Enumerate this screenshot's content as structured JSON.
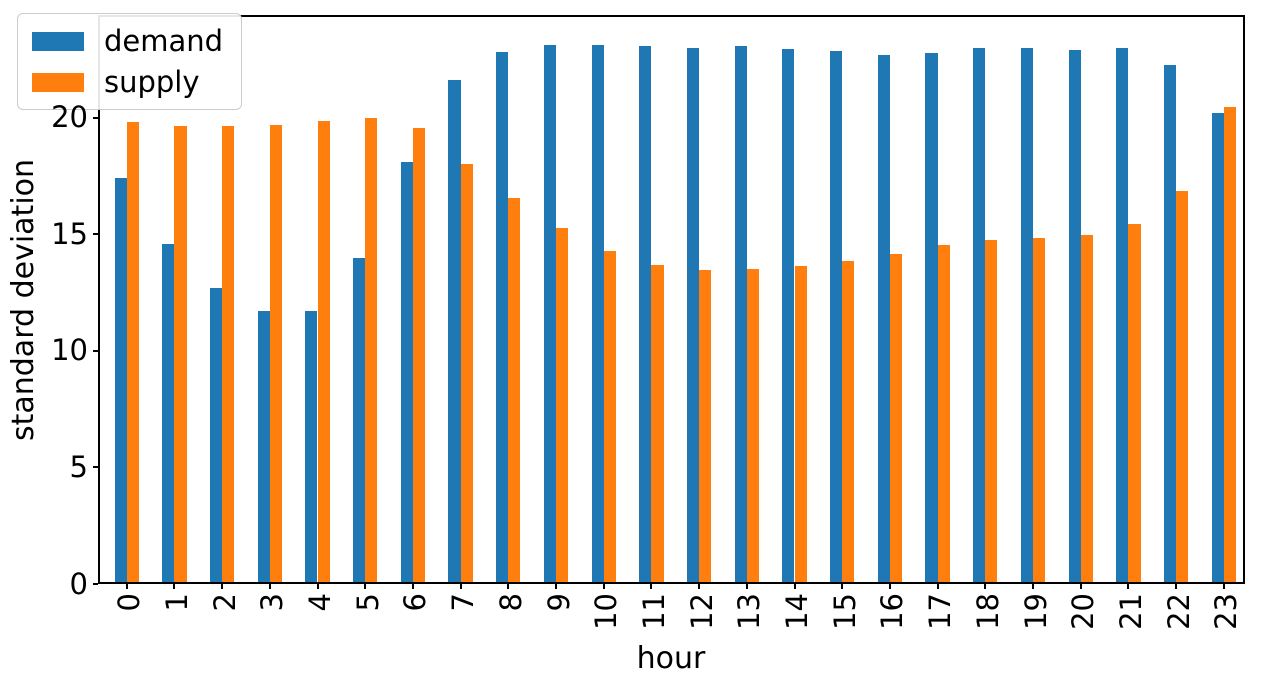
{
  "chart_data": {
    "type": "bar",
    "title": "",
    "xlabel": "hour",
    "ylabel": "standard deviation",
    "categories": [
      "0",
      "1",
      "2",
      "3",
      "4",
      "5",
      "6",
      "7",
      "8",
      "9",
      "10",
      "11",
      "12",
      "13",
      "14",
      "15",
      "16",
      "17",
      "18",
      "19",
      "20",
      "21",
      "22",
      "23"
    ],
    "series": [
      {
        "name": "demand",
        "color": "#1f77b4",
        "values": [
          17.4,
          14.6,
          12.7,
          11.7,
          11.7,
          14.0,
          18.1,
          21.6,
          22.8,
          23.1,
          23.1,
          23.05,
          23.0,
          23.05,
          22.95,
          22.85,
          22.7,
          22.75,
          23.0,
          23.0,
          22.9,
          23.0,
          22.25,
          20.2
        ]
      },
      {
        "name": "supply",
        "color": "#ff7f0e",
        "values": [
          19.8,
          19.65,
          19.65,
          19.7,
          19.85,
          20.0,
          19.55,
          18.0,
          16.55,
          15.25,
          14.3,
          13.7,
          13.45,
          13.5,
          13.65,
          13.85,
          14.15,
          14.55,
          14.75,
          14.85,
          14.95,
          15.45,
          16.85,
          20.45
        ]
      }
    ],
    "ylim": [
      0,
      24.4
    ],
    "yticks": [
      "0",
      "5",
      "10",
      "15",
      "20"
    ],
    "grid": false,
    "legend_position": "upper-left",
    "axis_color": "#000000",
    "background_color": "#ffffff"
  }
}
